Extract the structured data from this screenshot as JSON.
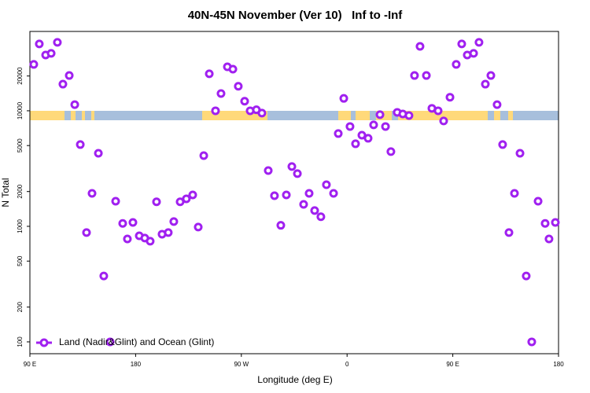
{
  "chart_data": {
    "type": "scatter",
    "title": "40N-45N November (Ver 10)   Inf to -Inf",
    "x_label": "Longitude (deg E)",
    "y_label": "N Total",
    "log_y": true,
    "legend": "bottom-left",
    "xlim": [
      90,
      540
    ],
    "ylim": [
      79,
      48600
    ],
    "xticks": [
      {
        "value": 90,
        "label": "90 E"
      },
      {
        "value": 180,
        "label": "180"
      },
      {
        "value": 270,
        "label": "90 W"
      },
      {
        "value": 360,
        "label": "0"
      },
      {
        "value": 450,
        "label": "90 E"
      },
      {
        "value": 540,
        "label": "180"
      }
    ],
    "yticks": [
      100,
      200,
      500,
      1000,
      2000,
      5000,
      10000,
      20000
    ],
    "series": [
      {
        "name": "Land (Nadir&Glint) and Ocean (Glint)",
        "color": "#a020f0",
        "x": [
          93.3,
          98.0,
          103.4,
          108.1,
          113.4,
          118.1,
          123.5,
          128.2,
          132.9,
          138.2,
          142.9,
          148.3,
          152.9,
          158.3,
          163.0,
          169.0,
          173.0,
          177.7,
          183.1,
          187.8,
          192.4,
          197.8,
          202.5,
          207.8,
          212.5,
          217.9,
          223.2,
          228.6,
          233.3,
          238.0,
          242.7,
          248.0,
          252.7,
          258.1,
          262.8,
          267.4,
          272.8,
          277.5,
          282.8,
          287.5,
          292.9,
          298.2,
          303.6,
          308.3,
          313.0,
          317.7,
          323.0,
          327.7,
          332.4,
          337.7,
          342.4,
          348.5,
          352.5,
          357.2,
          362.5,
          367.2,
          372.6,
          377.9,
          382.6,
          388.0,
          392.7,
          397.3,
          402.7,
          407.4,
          412.7,
          417.4,
          422.1,
          427.5,
          432.2,
          437.5,
          442.2,
          447.6,
          452.9,
          457.6,
          462.3,
          467.7,
          472.3,
          477.7,
          482.4,
          487.7,
          492.4,
          497.8,
          502.5,
          507.2,
          512.5,
          517.2,
          522.6,
          528.6,
          531.9,
          537.3
        ],
        "values": [
          25200,
          37900,
          30400,
          31400,
          39100,
          17000,
          20200,
          11300,
          5100,
          883,
          1930,
          4290,
          372,
          100,
          1650,
          1060,
          778,
          1080,
          828,
          791,
          743,
          1630,
          855,
          883,
          1100,
          1630,
          1730,
          1870,
          985,
          4090,
          20900,
          10000,
          14100,
          24000,
          22900,
          16300,
          12100,
          10000,
          10200,
          9550,
          3040,
          1840,
          1020,
          1870,
          3290,
          2860,
          1550,
          1930,
          1370,
          1210,
          2290,
          1930,
          6350,
          12800,
          7310,
          5180,
          6150,
          5780,
          7550,
          9250,
          7310,
          4430,
          9690,
          9390,
          9100,
          20200,
          36100,
          20200,
          10500,
          10000,
          8160,
          13100,
          25200,
          37900,
          30400,
          31400,
          39100,
          17000,
          20200,
          11300,
          5100,
          883,
          1930,
          4290,
          372,
          100,
          1650,
          1060,
          778,
          1080
        ]
      }
    ]
  }
}
